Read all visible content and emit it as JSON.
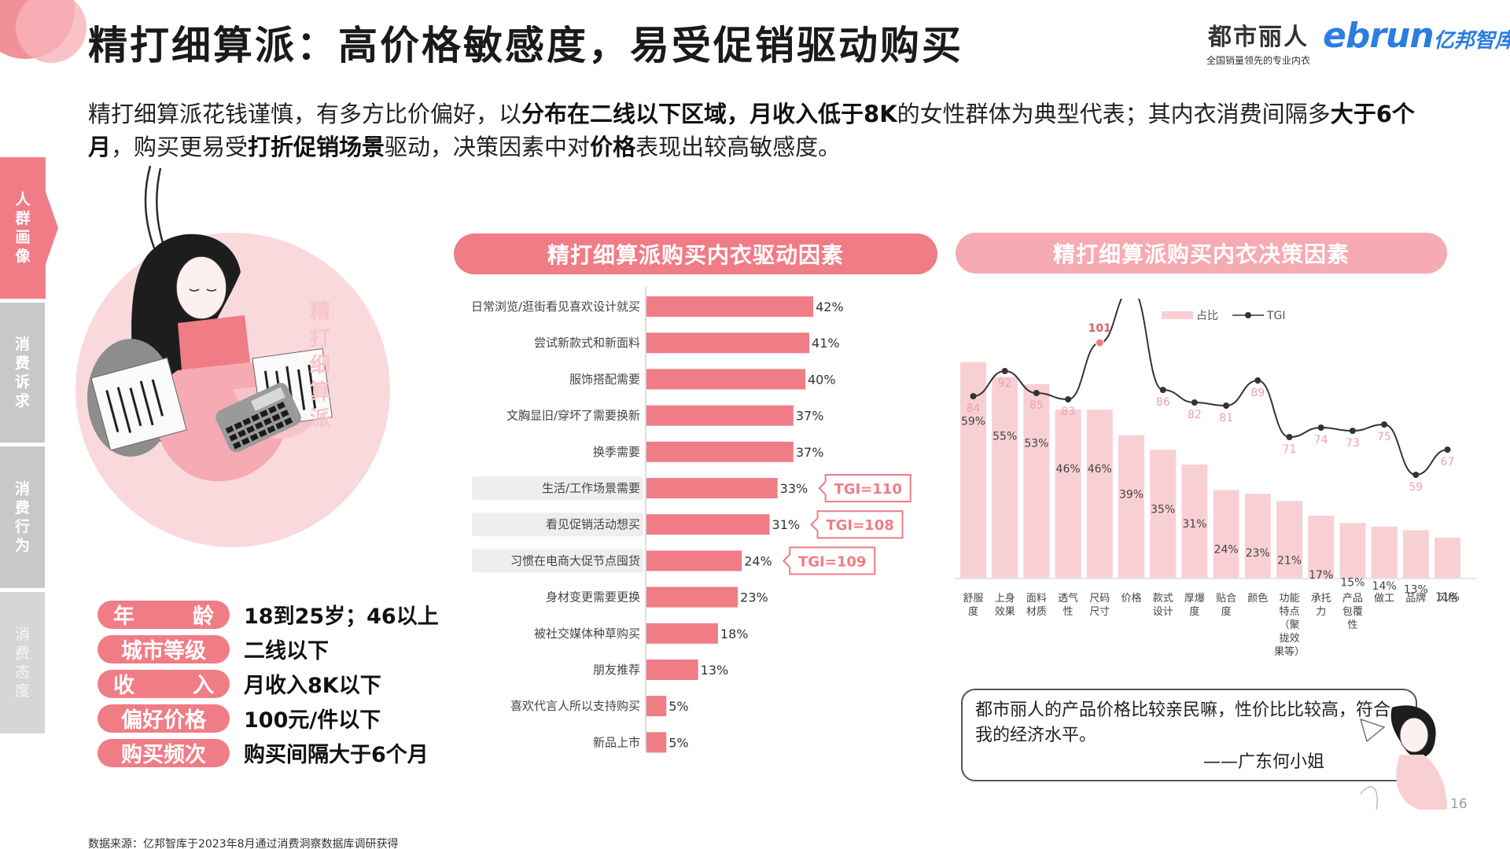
{
  "title": "精打细算派：高价格敏感度，易受促销驱动购买",
  "brand": {
    "name": "都市丽人",
    "tagline": "全国销量领先的专业内衣",
    "partner_latin": "ebrun",
    "partner_cn": "亿邦智库"
  },
  "intro": {
    "p1": "精打细算派花钱谨慎，有多方比价偏好，以",
    "b1": "分布在二线以下区域，月收入低于8K",
    "p2": "的女性群体为典型代表；其内衣消费间隔多",
    "b2": "大于6个月",
    "p3": "，购买更易受",
    "b3": "打折促销场景",
    "p4": "驱动，决策因素中对",
    "b4": "价格",
    "p5": "表现出较高敏感度。"
  },
  "side_nav": [
    {
      "label": "人群画像",
      "active": true
    },
    {
      "label": "消费诉求",
      "active": false
    },
    {
      "label": "消费行为",
      "active": false
    },
    {
      "label": "消费态度",
      "active": false
    }
  ],
  "persona_label": "精打细算派",
  "attributes": [
    {
      "label": "年龄",
      "value": "18到25岁；46以上"
    },
    {
      "label": "城市等级",
      "value": "二线以下"
    },
    {
      "label": "收入",
      "value": "月收入8K以下"
    },
    {
      "label": "偏好价格",
      "value": "100元/件以下"
    },
    {
      "label": "购买频次",
      "value": "购买间隔大于6个月"
    }
  ],
  "left_panel_title": "精打细算派购买内衣驱动因素",
  "right_panel_title": "精打细算派购买内衣决策因素",
  "chart_data": [
    {
      "type": "bar",
      "orientation": "horizontal",
      "title": "精打细算派购买内衣驱动因素",
      "categories": [
        "日常浏览/逛街看见喜欢设计就买",
        "尝试新款式和新面料",
        "服饰搭配需要",
        "文胸显旧/穿坏了需要换新",
        "换季需要",
        "生活/工作场景需要",
        "看见促销活动想买",
        "习惯在电商大促节点囤货",
        "身材变更需要更换",
        "被社交媒体种草购买",
        "朋友推荐",
        "喜欢代言人所以支持购买",
        "新品上市"
      ],
      "values": [
        42,
        41,
        40,
        37,
        37,
        33,
        31,
        24,
        23,
        18,
        13,
        5,
        5
      ],
      "unit": "%",
      "xlim": [
        0,
        100
      ],
      "highlighted": [
        "生活/工作场景需要",
        "看见促销活动想买",
        "习惯在电商大促节点囤货"
      ],
      "annotations": [
        {
          "category": "生活/工作场景需要",
          "text": "TGI=110"
        },
        {
          "category": "看见促销活动想买",
          "text": "TGI=108"
        },
        {
          "category": "习惯在电商大促节点囤货",
          "text": "TGI=109"
        }
      ]
    },
    {
      "type": "bar+line",
      "title": "精打细算派购买内衣决策因素",
      "categories": [
        "舒服度",
        "上身效果",
        "面料材质",
        "透气性",
        "尺码尺寸",
        "价格",
        "款式设计",
        "厚爆度",
        "贴合度",
        "颜色",
        "功能特点（聚拢效果等）",
        "承托力",
        "产品包覆性",
        "做工",
        "品牌",
        "风格"
      ],
      "category_labels": [
        "舒服\n度",
        "上身\n效果",
        "面料\n材质",
        "透气\n性",
        "尺码\n尺寸",
        "价格",
        "款式\n设计",
        "厚爆\n度",
        "贴合\n度",
        "颜色",
        "功能\n特点\n（聚\n拢效\n果等）",
        "承托\n力",
        "产品\n包覆\n性",
        "做工",
        "品牌",
        "风格"
      ],
      "series": [
        {
          "name": "占比",
          "type": "bar",
          "unit": "%",
          "values": [
            59,
            55,
            53,
            46,
            46,
            39,
            35,
            31,
            24,
            23,
            21,
            17,
            15,
            14,
            13,
            11
          ]
        },
        {
          "name": "TGI",
          "type": "line",
          "values": [
            84,
            92,
            85,
            83,
            101,
            118,
            86,
            82,
            81,
            89,
            71,
            74,
            73,
            75,
            59,
            67
          ]
        }
      ],
      "highlighted": [
        "尺码尺寸",
        "价格"
      ],
      "legend": [
        "占比",
        "TGI"
      ],
      "legend_position": "top"
    }
  ],
  "quote": {
    "text": "都市丽人的产品价格比较亲民嘛，性价比比较高，符合我的经济水平。",
    "signature": "——广东何小姐"
  },
  "source": "数据来源：亿邦智库于2023年8月通过消费洞察数据库调研获得",
  "page_number": "16",
  "colors": {
    "accent": "#f07c86",
    "accent_light": "#f6aab1",
    "bar_light": "#f8d0d4",
    "line": "#333333",
    "highlight": "#f07c86"
  }
}
